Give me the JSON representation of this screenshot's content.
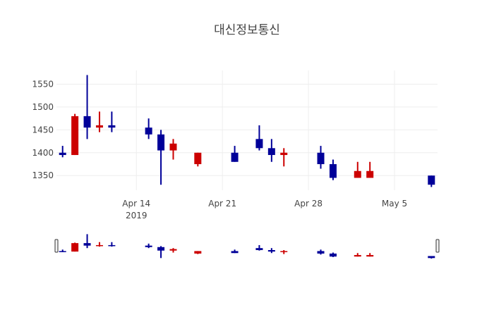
{
  "chart_data": {
    "type": "candlestick",
    "title": "대신정보통신",
    "xlabel": "",
    "ylabel": "",
    "ylim": [
      1318,
      1580
    ],
    "y_ticks": [
      1350,
      1400,
      1450,
      1500,
      1550
    ],
    "x_ticks": [
      {
        "date": "2019-04-14",
        "label": "Apr 14",
        "sublabel": "2019"
      },
      {
        "date": "2019-04-21",
        "label": "Apr 21",
        "sublabel": ""
      },
      {
        "date": "2019-04-28",
        "label": "Apr 28",
        "sublabel": ""
      },
      {
        "date": "2019-05-05",
        "label": "May 5",
        "sublabel": ""
      }
    ],
    "xlim": [
      "2019-04-07T12:00",
      "2019-05-08T12:00"
    ],
    "grid": true,
    "increasing_color": "#cc0000",
    "decreasing_color": "#000099",
    "rangeslider": true,
    "candles": [
      {
        "date": "2019-04-08",
        "open": 1400,
        "high": 1415,
        "low": 1390,
        "close": 1395
      },
      {
        "date": "2019-04-09",
        "open": 1395,
        "high": 1485,
        "low": 1395,
        "close": 1480
      },
      {
        "date": "2019-04-10",
        "open": 1480,
        "high": 1570,
        "low": 1430,
        "close": 1455
      },
      {
        "date": "2019-04-11",
        "open": 1455,
        "high": 1490,
        "low": 1445,
        "close": 1460
      },
      {
        "date": "2019-04-12",
        "open": 1460,
        "high": 1490,
        "low": 1445,
        "close": 1455
      },
      {
        "date": "2019-04-15",
        "open": 1455,
        "high": 1475,
        "low": 1430,
        "close": 1440
      },
      {
        "date": "2019-04-16",
        "open": 1440,
        "high": 1450,
        "low": 1330,
        "close": 1405
      },
      {
        "date": "2019-04-17",
        "open": 1405,
        "high": 1430,
        "low": 1385,
        "close": 1420
      },
      {
        "date": "2019-04-19",
        "open": 1375,
        "high": 1400,
        "low": 1370,
        "close": 1400
      },
      {
        "date": "2019-04-22",
        "open": 1400,
        "high": 1415,
        "low": 1380,
        "close": 1380
      },
      {
        "date": "2019-04-24",
        "open": 1430,
        "high": 1460,
        "low": 1405,
        "close": 1410
      },
      {
        "date": "2019-04-25",
        "open": 1410,
        "high": 1430,
        "low": 1380,
        "close": 1395
      },
      {
        "date": "2019-04-26",
        "open": 1395,
        "high": 1410,
        "low": 1370,
        "close": 1400
      },
      {
        "date": "2019-04-29",
        "open": 1400,
        "high": 1415,
        "low": 1365,
        "close": 1375
      },
      {
        "date": "2019-04-30",
        "open": 1375,
        "high": 1385,
        "low": 1340,
        "close": 1345
      },
      {
        "date": "2019-05-02",
        "open": 1345,
        "high": 1380,
        "low": 1345,
        "close": 1360
      },
      {
        "date": "2019-05-03",
        "open": 1345,
        "high": 1380,
        "low": 1345,
        "close": 1360
      },
      {
        "date": "2019-05-08",
        "open": 1350,
        "high": 1350,
        "low": 1325,
        "close": 1330
      }
    ]
  }
}
